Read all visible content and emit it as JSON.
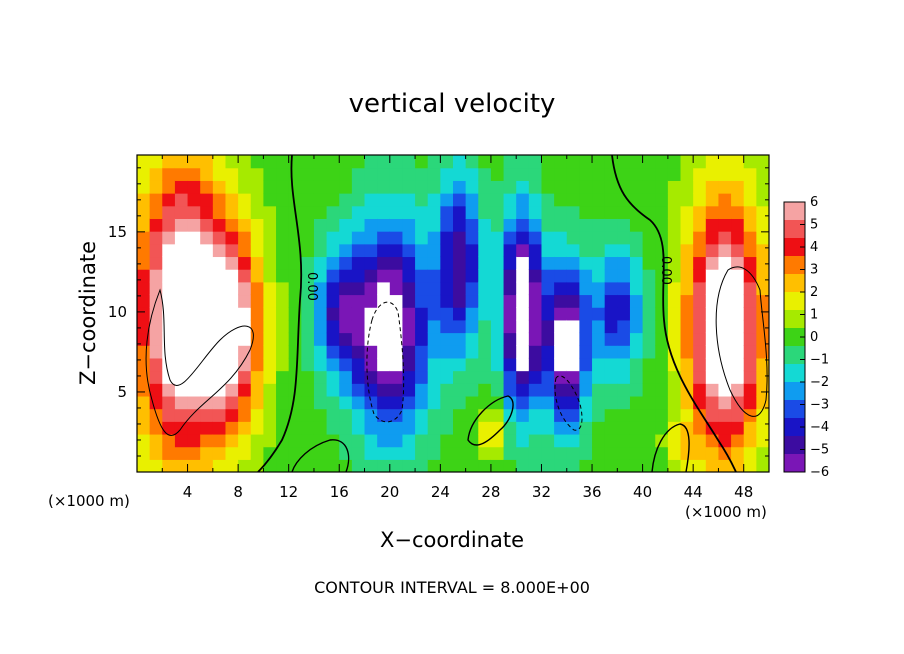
{
  "chart_data": {
    "type": "heatmap",
    "title": "vertical velocity",
    "xlabel": "X−coordinate",
    "ylabel": "Z−coordinate",
    "x_unit_label": "(×1000 m)",
    "y_unit_label": "(×1000 m)",
    "footer": "CONTOUR INTERVAL = 8.000E+00",
    "contour_label": "0.00",
    "xlim": [
      0,
      50
    ],
    "ylim": [
      0,
      19.8
    ],
    "x_ticks": [
      4,
      8,
      12,
      16,
      20,
      24,
      28,
      32,
      36,
      40,
      44,
      48
    ],
    "x_tick_labels": [
      "4",
      "8",
      "12",
      "16",
      "20",
      "24",
      "28",
      "32",
      "36",
      "40",
      "44",
      "48"
    ],
    "y_ticks": [
      5,
      10,
      15
    ],
    "y_tick_labels": [
      "5",
      "10",
      "15"
    ],
    "colorbar": {
      "range": [
        -6,
        6
      ],
      "ticks": [
        6,
        5,
        4,
        3,
        2,
        1,
        0,
        -1,
        -2,
        -3,
        -4,
        -5,
        -6
      ],
      "tick_labels": [
        "6",
        "5",
        "4",
        "3",
        "2",
        "1",
        "0",
        "−1",
        "−2",
        "−3",
        "−4",
        "−5",
        "−6"
      ],
      "colors": [
        "#f5a3a3",
        "#f25555",
        "#ee0f14",
        "#ff7a00",
        "#ffbf00",
        "#e9f000",
        "#a6ea00",
        "#3dd316",
        "#2bd77a",
        "#14d9d4",
        "#0f9cf0",
        "#1a4be6",
        "#1914c6",
        "#3c0ca0",
        "#7a16b6"
      ]
    },
    "field_features": [
      {
        "type": "updraft",
        "x": 3.5,
        "z": 10,
        "sx": 3.5,
        "sz": 9,
        "w": 8
      },
      {
        "type": "updraft",
        "x": 7.5,
        "z": 9,
        "sx": 2.5,
        "sz": 6,
        "w": 6
      },
      {
        "type": "updraft",
        "x": 46.5,
        "z": 9,
        "sx": 3.0,
        "sz": 8,
        "w": 8
      },
      {
        "type": "updraft",
        "x": 28,
        "z": 2.5,
        "sx": 1.2,
        "sz": 1.5,
        "w": 2
      },
      {
        "type": "updraft",
        "x": 43,
        "z": 1.5,
        "sx": 1.0,
        "sz": 1.2,
        "w": 2
      },
      {
        "type": "downdraft",
        "x": 20,
        "z": 9,
        "sx": 3.0,
        "sz": 6.5,
        "w": -7
      },
      {
        "type": "downdraft",
        "x": 25.5,
        "z": 13,
        "sx": 1.8,
        "sz": 5.5,
        "w": -5
      },
      {
        "type": "downdraft",
        "x": 30.5,
        "z": 10,
        "sx": 1.6,
        "sz": 6,
        "w": -8
      },
      {
        "type": "downdraft",
        "x": 34,
        "z": 8,
        "sx": 1.6,
        "sz": 5,
        "w": -7
      },
      {
        "type": "downdraft",
        "x": 38,
        "z": 10,
        "sx": 2.0,
        "sz": 4,
        "w": -4
      },
      {
        "type": "downdraft",
        "x": 16,
        "z": 10,
        "sx": 2.0,
        "sz": 4,
        "w": -4
      }
    ]
  }
}
